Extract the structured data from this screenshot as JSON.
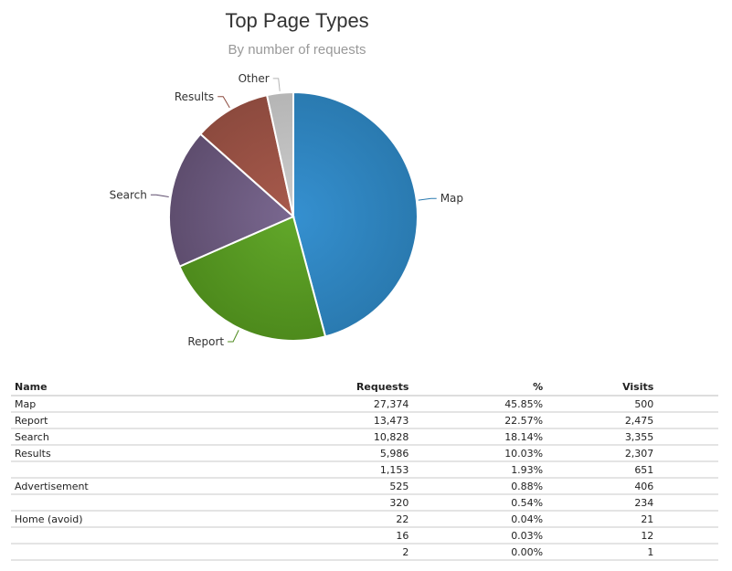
{
  "chart_data": {
    "type": "pie",
    "title": "Top Page Types",
    "subtitle": "By number of requests",
    "slices": [
      {
        "label": "Map",
        "value": 45.85,
        "color": "#2a7ab0",
        "color_light": "#3590d0"
      },
      {
        "label": "Report",
        "value": 22.57,
        "color": "#4d8a1c",
        "color_light": "#62a82a"
      },
      {
        "label": "Search",
        "value": 18.14,
        "color": "#5e4d6e",
        "color_light": "#7a6890"
      },
      {
        "label": "Results",
        "value": 10.03,
        "color": "#8c4a3e",
        "color_light": "#a85a4c"
      },
      {
        "label": "Other",
        "value": 3.41,
        "color": "#b5b5b5",
        "color_light": "#cccccc"
      }
    ]
  },
  "table": {
    "headers": {
      "name": "Name",
      "requests": "Requests",
      "percent": "%",
      "visits": "Visits"
    },
    "rows": [
      {
        "name": "Map",
        "requests": "27,374",
        "percent": "45.85%",
        "visits": "500"
      },
      {
        "name": "Report",
        "requests": "13,473",
        "percent": "22.57%",
        "visits": "2,475"
      },
      {
        "name": "Search",
        "requests": "10,828",
        "percent": "18.14%",
        "visits": "3,355"
      },
      {
        "name": "Results",
        "requests": "5,986",
        "percent": "10.03%",
        "visits": "2,307"
      },
      {
        "name": "",
        "requests": "1,153",
        "percent": "1.93%",
        "visits": "651"
      },
      {
        "name": "Advertisement",
        "requests": "525",
        "percent": "0.88%",
        "visits": "406"
      },
      {
        "name": "",
        "requests": "320",
        "percent": "0.54%",
        "visits": "234"
      },
      {
        "name": "Home (avoid)",
        "requests": "22",
        "percent": "0.04%",
        "visits": "21"
      },
      {
        "name": "",
        "requests": "16",
        "percent": "0.03%",
        "visits": "12"
      },
      {
        "name": "",
        "requests": "2",
        "percent": "0.00%",
        "visits": "1"
      }
    ]
  }
}
